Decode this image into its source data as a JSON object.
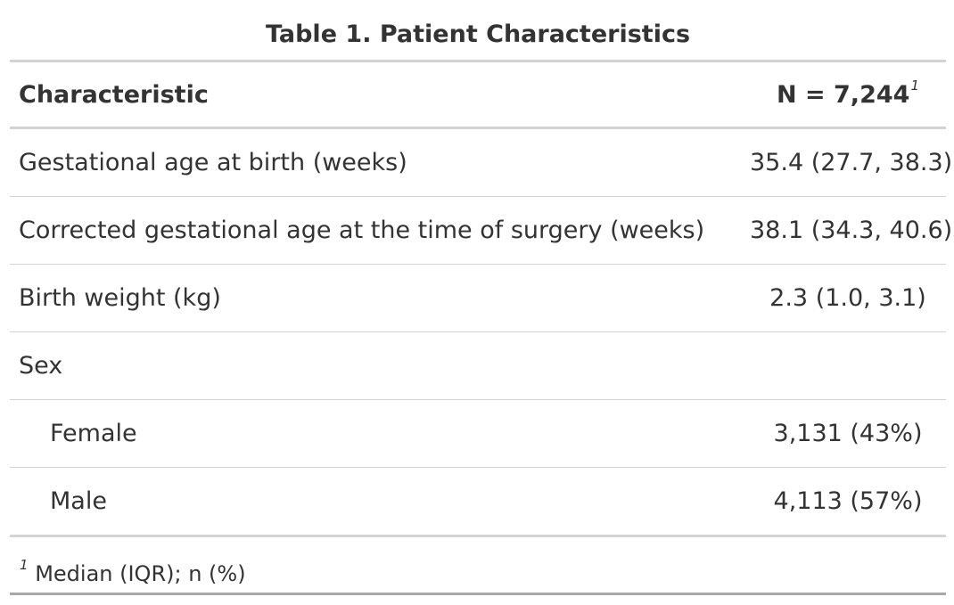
{
  "table": {
    "title": "Table 1. Patient Characteristics",
    "header": {
      "label": "Characteristic",
      "value": "N = 7,244",
      "value_footnote_mark": "1"
    },
    "rows": [
      {
        "label": "Gestational age at birth (weeks)",
        "value": "35.4 (27.7, 38.3)"
      },
      {
        "label": "Corrected gestational age at the time of surgery (weeks)",
        "value": "38.1 (34.3, 40.6)"
      },
      {
        "label": "Birth weight (kg)",
        "value": "2.3 (1.0, 3.1)"
      },
      {
        "label": "Sex",
        "value": ""
      },
      {
        "label": "Female",
        "value": "3,131 (43%)"
      },
      {
        "label": "Male",
        "value": "4,113 (57%)"
      }
    ],
    "footnote": {
      "mark": "1",
      "text": "Median (IQR); n (%)"
    }
  }
}
